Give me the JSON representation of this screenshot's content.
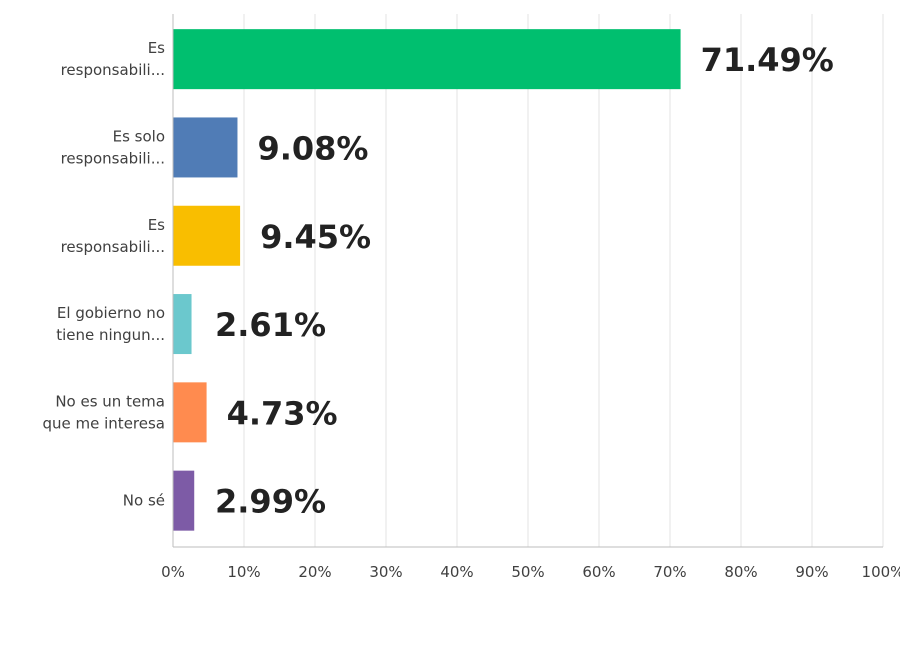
{
  "chart_data": {
    "type": "bar",
    "orientation": "horizontal",
    "categories": [
      [
        "Es",
        "responsabili..."
      ],
      [
        "Es solo",
        "responsabili..."
      ],
      [
        "Es",
        "responsabili..."
      ],
      [
        "El gobierno no",
        "tiene ningun..."
      ],
      [
        "No es un tema",
        "que me interesa"
      ],
      [
        "No sé"
      ]
    ],
    "values": [
      71.49,
      9.08,
      9.45,
      2.61,
      4.73,
      2.99
    ],
    "data_labels": [
      "71.49%",
      "9.08%",
      "9.45%",
      "2.61%",
      "4.73%",
      "2.99%"
    ],
    "colors": [
      "#00bf6f",
      "#507cb6",
      "#f9be00",
      "#6bc8cd",
      "#ff8b4f",
      "#7d5ba6"
    ],
    "x_ticks": [
      "0%",
      "10%",
      "20%",
      "30%",
      "40%",
      "50%",
      "60%",
      "70%",
      "80%",
      "90%",
      "100%"
    ],
    "xlim": [
      0,
      100
    ],
    "grid": "vertical",
    "legend": "none"
  }
}
